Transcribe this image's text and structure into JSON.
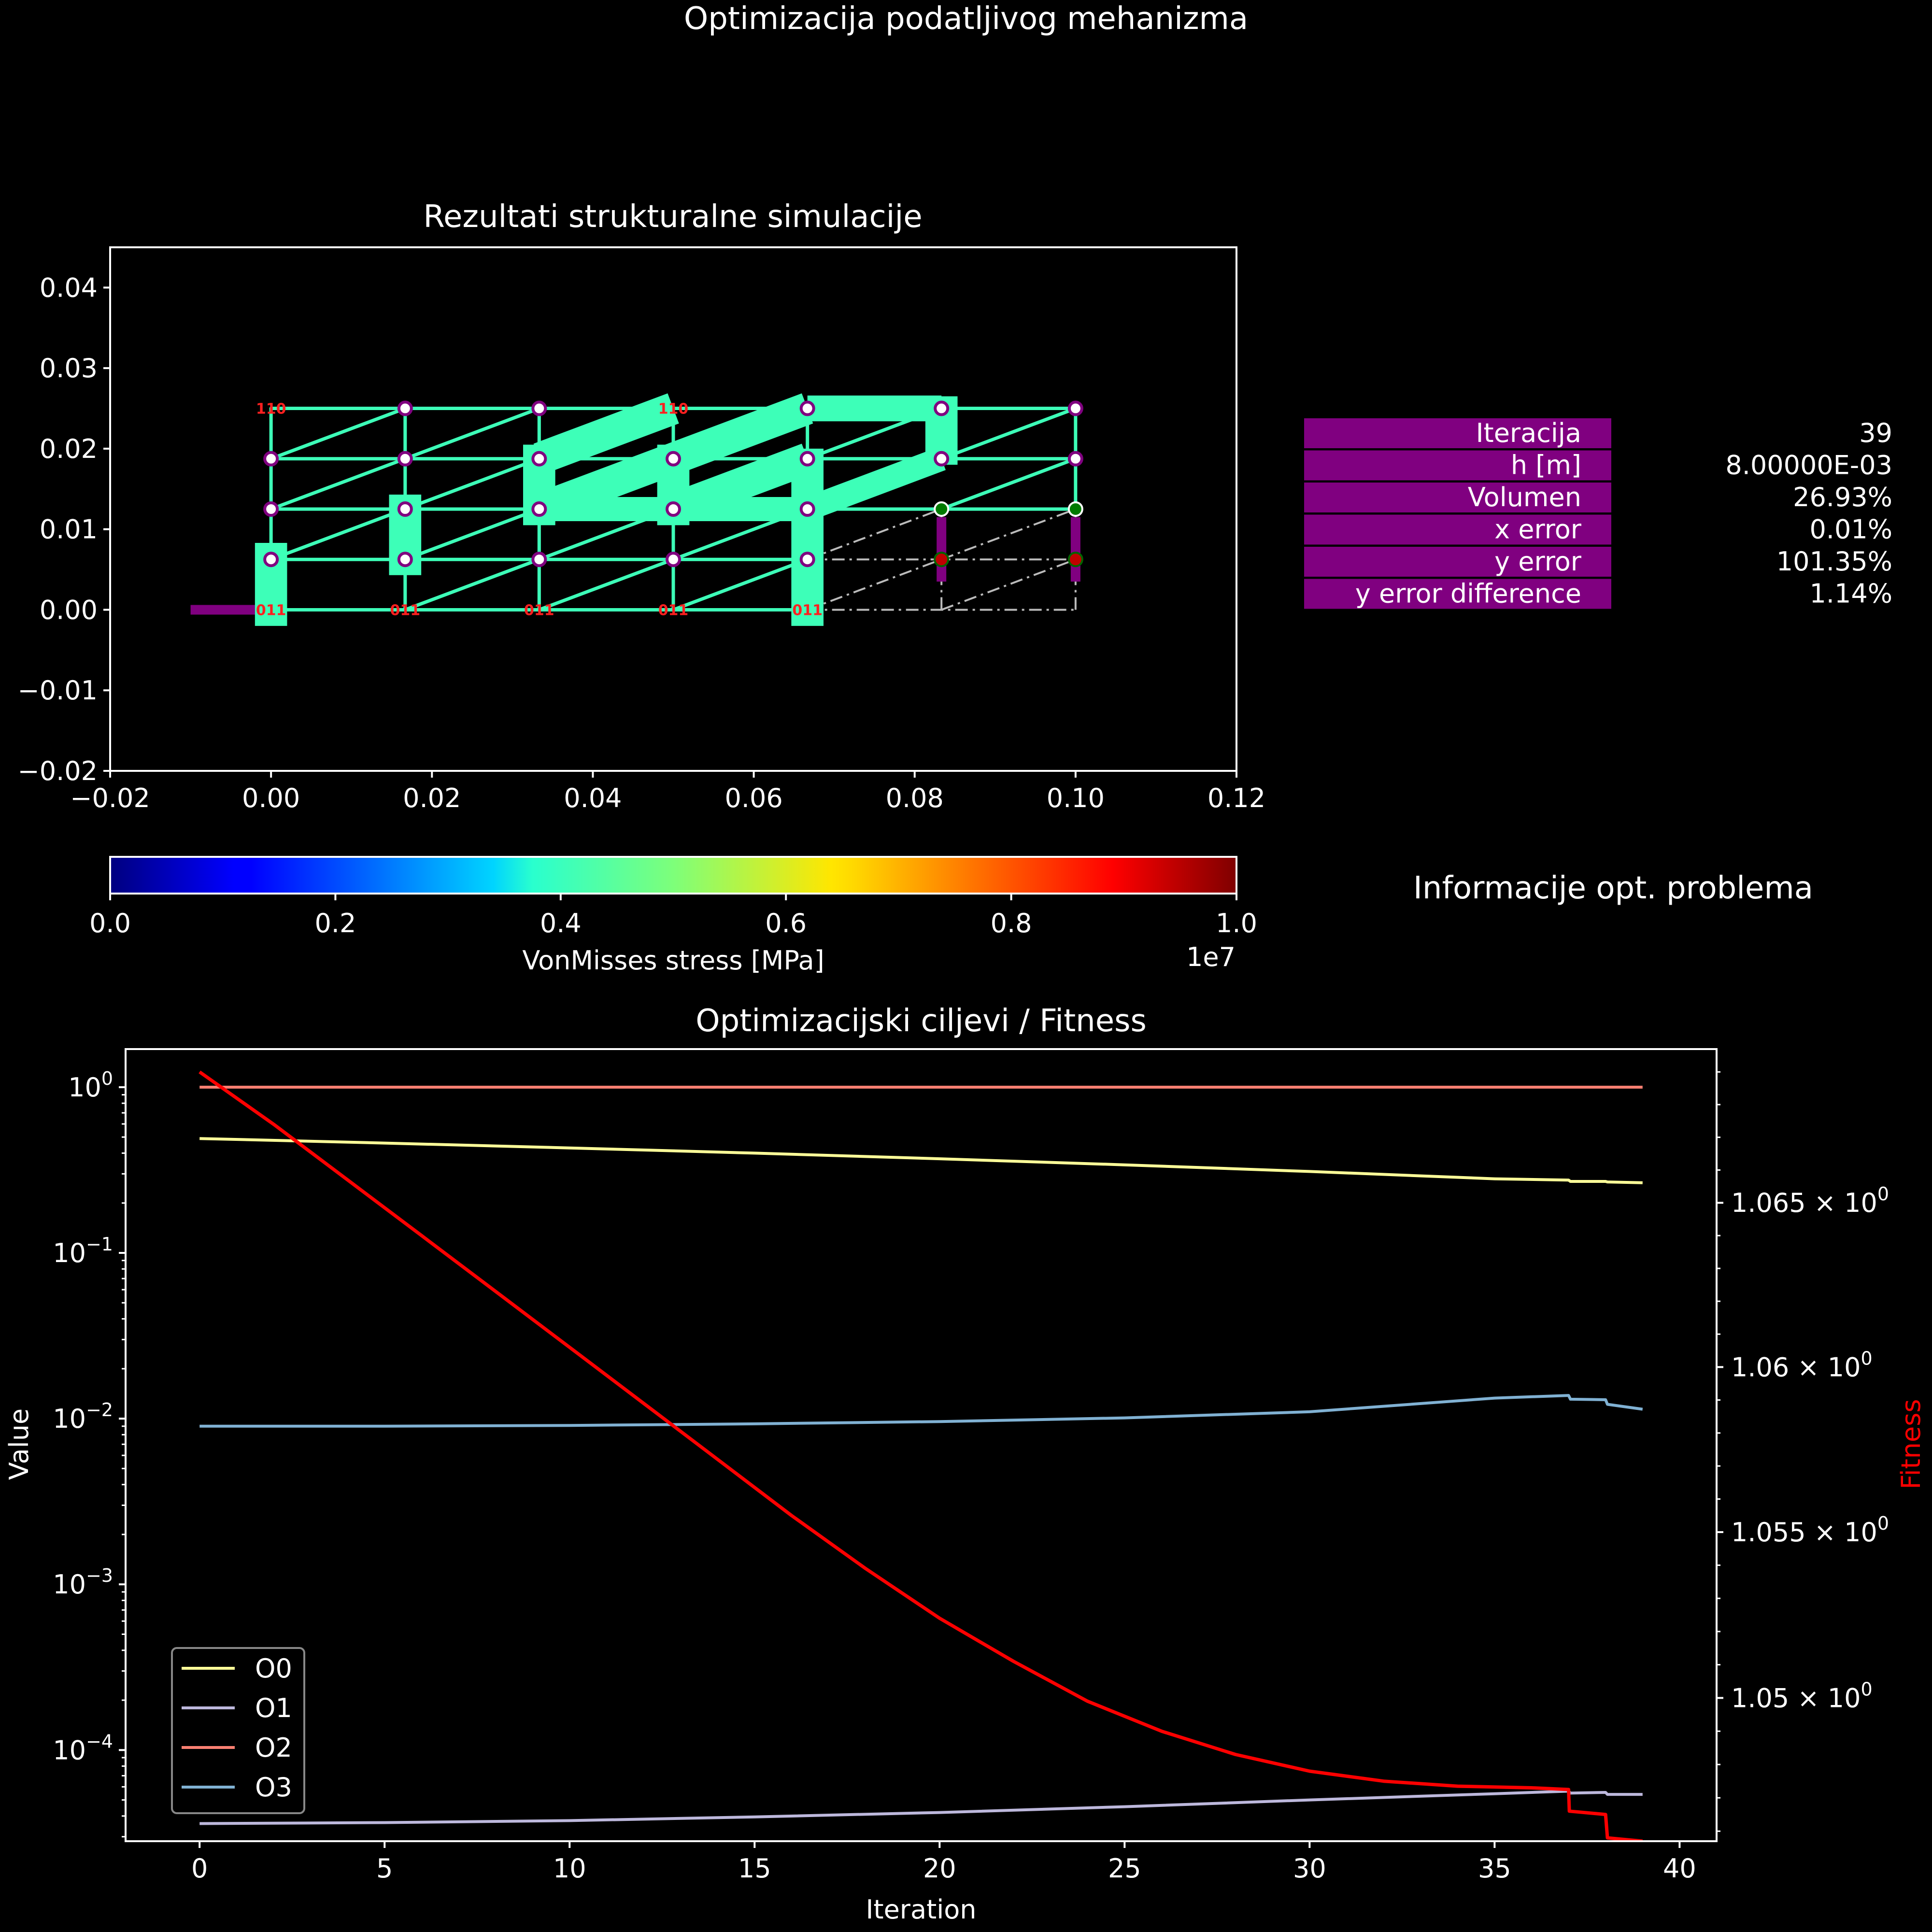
{
  "page": {
    "title": "Optimizacija podatljivog mehanizma"
  },
  "colors": {
    "background": "#000000",
    "beam": "#3dffb8",
    "node_fill": "#ffffff",
    "node_edge": "#800080",
    "fixed_node": "#007a00",
    "target_node": "#c00000",
    "support": "#800080",
    "ghost": "#bbbbbb",
    "label": "#ff2020",
    "table_cell": "#800080",
    "fitness": "#ff0000"
  },
  "chart_data": [
    {
      "id": "structure",
      "type": "scatter",
      "title": "Rezultati strukturalne simulacije",
      "xlim": [
        -0.02,
        0.12
      ],
      "ylim": [
        -0.02,
        0.045
      ],
      "x_ticks": [
        "−0.02",
        "0.00",
        "0.02",
        "0.04",
        "0.06",
        "0.08",
        "0.10",
        "0.12"
      ],
      "x_tick_values": [
        -0.02,
        0,
        0.02,
        0.04,
        0.06,
        0.08,
        0.1,
        0.12
      ],
      "y_ticks": [
        "0.04",
        "0.03",
        "0.02",
        "0.01",
        "0.00",
        "−0.01",
        "−0.02"
      ],
      "y_tick_values": [
        0.04,
        0.03,
        0.02,
        0.01,
        0,
        -0.01,
        -0.02
      ],
      "nodes": [
        {
          "x": 0,
          "y": 0.00625
        },
        {
          "x": 0,
          "y": 0.0125
        },
        {
          "x": 0,
          "y": 0.01875
        },
        {
          "x": 0.01667,
          "y": 0.00625
        },
        {
          "x": 0.01667,
          "y": 0.0125
        },
        {
          "x": 0.01667,
          "y": 0.01875
        },
        {
          "x": 0.01667,
          "y": 0.025
        },
        {
          "x": 0.03333,
          "y": 0.00625
        },
        {
          "x": 0.03333,
          "y": 0.0125
        },
        {
          "x": 0.03333,
          "y": 0.01875
        },
        {
          "x": 0.03333,
          "y": 0.025
        },
        {
          "x": 0.05,
          "y": 0.00625
        },
        {
          "x": 0.05,
          "y": 0.0125
        },
        {
          "x": 0.05,
          "y": 0.01875
        },
        {
          "x": 0.06667,
          "y": 0.00625
        },
        {
          "x": 0.06667,
          "y": 0.0125
        },
        {
          "x": 0.06667,
          "y": 0.01875
        },
        {
          "x": 0.06667,
          "y": 0.025
        },
        {
          "x": 0.08333,
          "y": 0.01875
        },
        {
          "x": 0.08333,
          "y": 0.025
        },
        {
          "x": 0.1,
          "y": 0.01875
        },
        {
          "x": 0.1,
          "y": 0.025
        }
      ],
      "fixed_nodes": [
        {
          "x": 0.08333,
          "y": 0.0125
        },
        {
          "x": 0.1,
          "y": 0.0125
        }
      ],
      "target_nodes": [
        {
          "x": 0.08333,
          "y": 0.00625
        },
        {
          "x": 0.1,
          "y": 0.00625
        }
      ],
      "node_labels": [
        {
          "x": 0,
          "y": 0.025,
          "text": "110"
        },
        {
          "x": 0.05,
          "y": 0.025,
          "text": "110"
        },
        {
          "x": 0,
          "y": 0,
          "text": "011"
        },
        {
          "x": 0.01667,
          "y": 0,
          "text": "011"
        },
        {
          "x": 0.03333,
          "y": 0,
          "text": "011"
        },
        {
          "x": 0.05,
          "y": 0,
          "text": "011"
        },
        {
          "x": 0.06667,
          "y": 0,
          "text": "011"
        }
      ],
      "thin_segments": [
        [
          0,
          0,
          0,
          0.025
        ],
        [
          0.01667,
          0,
          0.01667,
          0.025
        ],
        [
          0.03333,
          0,
          0.03333,
          0.025
        ],
        [
          0.05,
          0,
          0.05,
          0.025
        ],
        [
          0.06667,
          0,
          0.06667,
          0.025
        ],
        [
          0.1,
          0.0125,
          0.1,
          0.025
        ],
        [
          0,
          0.025,
          0.1,
          0.025
        ],
        [
          0,
          0.01875,
          0.1,
          0.01875
        ],
        [
          0,
          0.0125,
          0.1,
          0.0125
        ],
        [
          0,
          0.00625,
          0.06667,
          0.00625
        ],
        [
          0,
          0,
          0.06667,
          0
        ],
        [
          0,
          0.00625,
          0.01667,
          0.0125
        ],
        [
          0,
          0.0125,
          0.01667,
          0.01875
        ],
        [
          0,
          0.01875,
          0.01667,
          0.025
        ],
        [
          0.01667,
          0,
          0.03333,
          0.00625
        ],
        [
          0.01667,
          0.00625,
          0.03333,
          0.0125
        ],
        [
          0.01667,
          0.0125,
          0.03333,
          0.01875
        ],
        [
          0.01667,
          0.01875,
          0.03333,
          0.025
        ],
        [
          0.03333,
          0,
          0.05,
          0.00625
        ],
        [
          0.03333,
          0.00625,
          0.05,
          0.0125
        ],
        [
          0.03333,
          0.0125,
          0.05,
          0.01875
        ],
        [
          0.05,
          0,
          0.06667,
          0.00625
        ],
        [
          0.05,
          0.00625,
          0.06667,
          0.0125
        ],
        [
          0.05,
          0.0125,
          0.06667,
          0.01875
        ],
        [
          0.06667,
          0.0125,
          0.08333,
          0.01875
        ],
        [
          0.06667,
          0.01875,
          0.08333,
          0.025
        ],
        [
          0.08333,
          0.01875,
          0.1,
          0.025
        ],
        [
          0.08333,
          0.0125,
          0.1,
          0.01875
        ]
      ],
      "thick_segments": [
        {
          "s": [
            0,
            -0.002,
            0,
            0.0083
          ],
          "w": 4
        },
        {
          "s": [
            0.01667,
            0.0043,
            0.01667,
            0.0143
          ],
          "w": 4
        },
        {
          "s": [
            0.03333,
            0.0105,
            0.03333,
            0.0205
          ],
          "w": 4
        },
        {
          "s": [
            0.05,
            0.0105,
            0.05,
            0.0205
          ],
          "w": 4
        },
        {
          "s": [
            0.06667,
            -0.002,
            0.06667,
            0.02
          ],
          "w": 4
        },
        {
          "s": [
            0.08333,
            0.018,
            0.08333,
            0.0265
          ],
          "w": 4
        },
        {
          "s": [
            0.03333,
            0.01875,
            0.05,
            0.025
          ],
          "w": 4
        },
        {
          "s": [
            0.03333,
            0.0125,
            0.05,
            0.01875
          ],
          "w": 4
        },
        {
          "s": [
            0.05,
            0.01875,
            0.06667,
            0.025
          ],
          "w": 4
        },
        {
          "s": [
            0.05,
            0.0125,
            0.06667,
            0.01875
          ],
          "w": 4
        },
        {
          "s": [
            0.06667,
            0.0125,
            0.08333,
            0.01875
          ],
          "w": 3
        },
        {
          "s": [
            0.06667,
            0.025,
            0.08333,
            0.025
          ],
          "w": 3.2
        },
        {
          "s": [
            0.03333,
            0.0125,
            0.06667,
            0.0125
          ],
          "w": 3
        }
      ],
      "ghost_segments": [
        [
          0.06667,
          0.00625,
          0.1,
          0.00625
        ],
        [
          0.06667,
          0,
          0.1,
          0
        ],
        [
          0.06667,
          0,
          0.08333,
          0.00625
        ],
        [
          0.06667,
          0.00625,
          0.08333,
          0.0125
        ],
        [
          0.08333,
          0,
          0.1,
          0.00625
        ],
        [
          0.08333,
          0.00625,
          0.1,
          0.0125
        ],
        [
          0.08333,
          0,
          0.08333,
          0.0125
        ],
        [
          0.1,
          0,
          0.1,
          0.0125
        ]
      ],
      "support_segments": [
        [
          -0.01,
          0,
          0,
          0
        ],
        [
          0.08333,
          0.0035,
          0.08333,
          0.0115
        ],
        [
          0.1,
          0.0035,
          0.1,
          0.0115
        ]
      ]
    },
    {
      "id": "colorbar",
      "type": "heatmap",
      "xlabel": "VonMisses stress [MPa]",
      "range": [
        0,
        1
      ],
      "ticks": [
        "0.0",
        "0.2",
        "0.4",
        "0.6",
        "0.8",
        "1.0"
      ],
      "tick_values": [
        0,
        0.2,
        0.4,
        0.6,
        0.8,
        1.0
      ],
      "multiplier": "1e7",
      "colormap": "jet"
    },
    {
      "id": "objectives",
      "type": "line",
      "title": "Optimizacijski ciljevi / Fitness",
      "xlabel": "Iteration",
      "ylabel": "Value",
      "y2label": "Fitness",
      "xlim": [
        -2,
        41
      ],
      "x_ticks": [
        "0",
        "5",
        "10",
        "15",
        "20",
        "25",
        "30",
        "35",
        "40"
      ],
      "x_tick_values": [
        0,
        5,
        10,
        15,
        20,
        25,
        30,
        35,
        40
      ],
      "ylog": true,
      "ylim_exp": [
        -4.55,
        0.23
      ],
      "y_ticks": [
        {
          "base": "10",
          "exp": "0",
          "e": 0
        },
        {
          "base": "10",
          "exp": "−1",
          "e": -1
        },
        {
          "base": "10",
          "exp": "−2",
          "e": -2
        },
        {
          "base": "10",
          "exp": "−3",
          "e": -3
        },
        {
          "base": "10",
          "exp": "−4",
          "e": -4
        }
      ],
      "y2lim": [
        1.0457,
        1.0697
      ],
      "y2_ticks": [
        {
          "m": "1.065",
          "v": 1.065
        },
        {
          "m": "1.06",
          "v": 1.06
        },
        {
          "m": "1.055",
          "v": 1.055
        },
        {
          "m": "1.05",
          "v": 1.05
        }
      ],
      "y2_tick_suffix": "× 10",
      "y2_tick_exp": "0",
      "legend_position": "lower-left",
      "series": [
        {
          "name": "O0",
          "color": "#ffff99",
          "axis": "left",
          "x": [
            0,
            5,
            10,
            15,
            20,
            25,
            30,
            35,
            37,
            37.05,
            38,
            38.05,
            39
          ],
          "y": [
            0.49,
            0.46,
            0.43,
            0.4,
            0.37,
            0.34,
            0.31,
            0.28,
            0.275,
            0.27,
            0.27,
            0.268,
            0.265
          ]
        },
        {
          "name": "O1",
          "color": "#bdb8dc",
          "axis": "left",
          "x": [
            0,
            5,
            10,
            15,
            20,
            25,
            30,
            35,
            37,
            37.05,
            38,
            38.05,
            39
          ],
          "y": [
            3.6e-05,
            3.65e-05,
            3.75e-05,
            3.95e-05,
            4.2e-05,
            4.55e-05,
            5e-05,
            5.45e-05,
            5.65e-05,
            5.5e-05,
            5.55e-05,
            5.4e-05,
            5.4e-05
          ]
        },
        {
          "name": "O2",
          "color": "#fb8072",
          "axis": "left",
          "x": [
            0,
            39
          ],
          "y": [
            1.0,
            1.0
          ]
        },
        {
          "name": "O3",
          "color": "#80b1d3",
          "axis": "left",
          "x": [
            0,
            5,
            10,
            15,
            20,
            25,
            30,
            35,
            37,
            37.05,
            38,
            38.05,
            39
          ],
          "y": [
            0.009,
            0.009,
            0.0091,
            0.0093,
            0.0096,
            0.0101,
            0.011,
            0.0133,
            0.0138,
            0.0131,
            0.013,
            0.0122,
            0.0114
          ]
        },
        {
          "name": "",
          "color": "#ff0000",
          "axis": "right",
          "x": [
            0,
            2,
            4,
            6,
            8,
            10,
            12,
            14,
            16,
            18,
            20,
            22,
            24,
            26,
            28,
            30,
            32,
            34,
            36,
            37,
            37.02,
            38,
            38.05,
            39
          ],
          "y": [
            1.069,
            1.0674,
            1.0657,
            1.064,
            1.0623,
            1.0606,
            1.0589,
            1.0572,
            1.0555,
            1.0539,
            1.0524,
            1.0511,
            1.0499,
            1.049,
            1.0483,
            1.0478,
            1.0475,
            1.04735,
            1.0473,
            1.04725,
            1.0466,
            1.0465,
            1.0458,
            1.0457
          ]
        }
      ]
    }
  ],
  "info_panel": {
    "title": "Informacije opt. problema",
    "rows": [
      {
        "label": "Iteracija",
        "value": "39"
      },
      {
        "label": "h [m]",
        "value": "8.00000E-03"
      },
      {
        "label": "Volumen",
        "value": "26.93%"
      },
      {
        "label": "x error",
        "value": "0.01%"
      },
      {
        "label": "y error",
        "value": "101.35%"
      },
      {
        "label": "y error difference",
        "value": "1.14%"
      }
    ]
  }
}
